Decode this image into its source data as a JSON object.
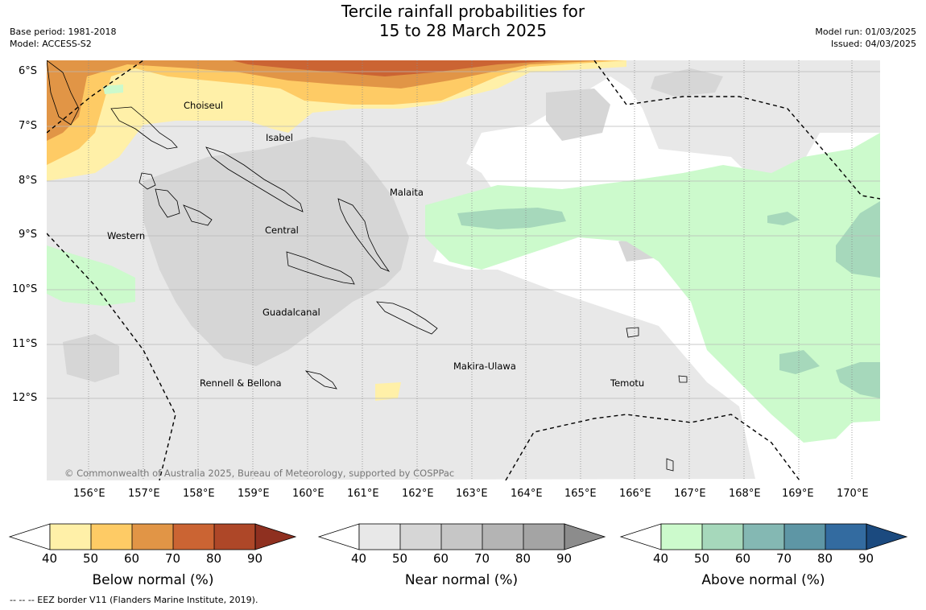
{
  "title_line1": "Tercile rainfall probabilities for",
  "title_line2": "15 to 28 March 2025",
  "base_period": "Base period: 1981-2018",
  "model": "Model: ACCESS-S2",
  "model_run": "Model run: 01/03/2025",
  "issued": "Issued: 04/03/2025",
  "copyright": "© Commonwealth of Australia 2025, Bureau of Meteorology, supported by COSPPac",
  "lat_labels": [
    "6°S",
    "7°S",
    "8°S",
    "9°S",
    "10°S",
    "11°S",
    "12°S"
  ],
  "lon_labels": [
    "156°E",
    "157°E",
    "158°E",
    "159°E",
    "160°E",
    "161°E",
    "162°E",
    "163°E",
    "164°E",
    "165°E",
    "166°E",
    "167°E",
    "168°E",
    "169°E",
    "170°E"
  ],
  "regions": {
    "choiseul": "Choiseul",
    "isabel": "Isabel",
    "malaita": "Malaita",
    "central": "Central",
    "western": "Western",
    "guadalcanal": "Guadalcanal",
    "makira": "Makira-Ulawa",
    "rennell": "Rennell & Bellona",
    "temotu": "Temotu"
  },
  "colorbars": [
    {
      "label": "Below normal (%)",
      "ticks": [
        "40",
        "50",
        "60",
        "70",
        "80",
        "90"
      ],
      "colors": [
        "#fff0a8",
        "#fecb65",
        "#e19546",
        "#cb6433",
        "#ae4728",
        "#8f3020"
      ]
    },
    {
      "label": "Near normal (%)",
      "ticks": [
        "40",
        "50",
        "60",
        "70",
        "80",
        "90"
      ],
      "colors": [
        "#e8e8e8",
        "#d6d6d6",
        "#c6c6c6",
        "#b4b4b4",
        "#a4a4a4",
        "#8c8c8c"
      ]
    },
    {
      "label": "Above normal (%)",
      "ticks": [
        "40",
        "50",
        "60",
        "70",
        "80",
        "90"
      ],
      "colors": [
        "#ccfacc",
        "#a6d8bb",
        "#84b8b3",
        "#5e96a5",
        "#336ba0",
        "#1b4a7f"
      ]
    }
  ],
  "eez_note": "--  --  -- EEZ border V11 (Flanders Marine Institute, 2019)."
}
